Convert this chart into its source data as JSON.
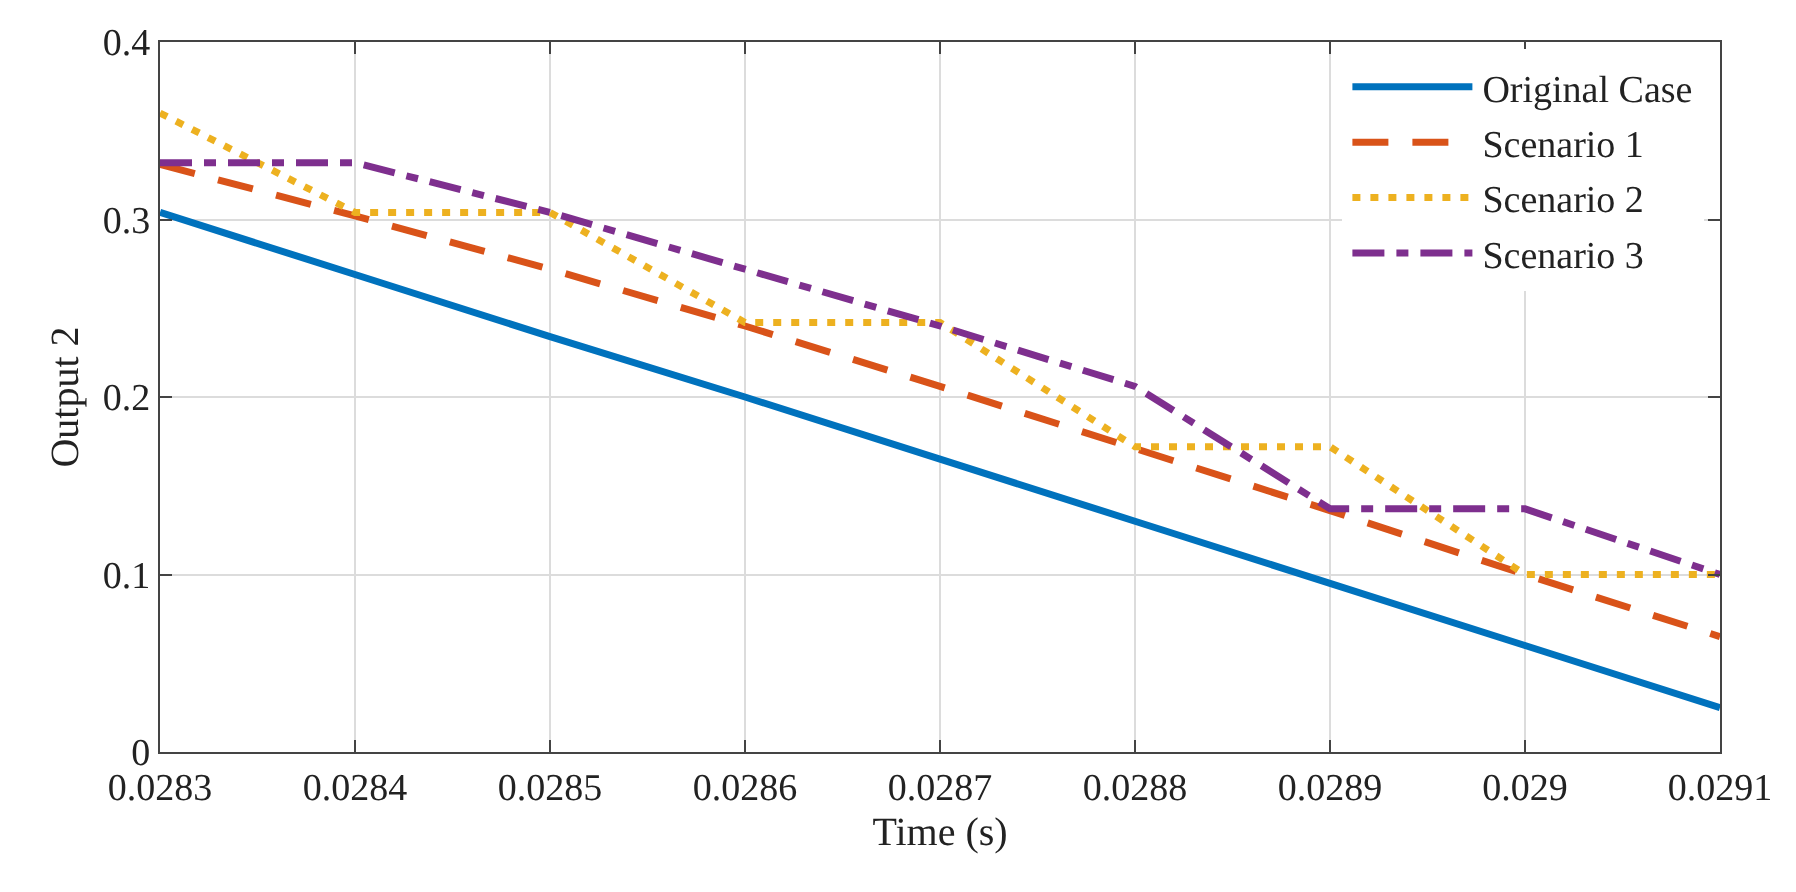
{
  "chart_data": {
    "type": "line",
    "xlabel": "Time (s)",
    "ylabel": "Output 2",
    "x": [
      0.0283,
      0.0284,
      0.0285,
      0.0286,
      0.0287,
      0.0288,
      0.0289,
      0.029,
      0.0291
    ],
    "series": [
      {
        "name": "Original Case",
        "color": "#0072bd",
        "line_style": "solid",
        "values": [
          0.304,
          0.269,
          0.234,
          0.2,
          0.165,
          0.13,
          0.095,
          0.06,
          0.025
        ]
      },
      {
        "name": "Scenario 1",
        "color": "#d95319",
        "line_style": "dashed",
        "values": [
          0.331,
          0.302,
          0.272,
          0.24,
          0.206,
          0.171,
          0.136,
          0.1,
          0.065
        ]
      },
      {
        "name": "Scenario 2",
        "color": "#edb120",
        "line_style": "dotted",
        "values": [
          0.36,
          0.304,
          0.304,
          0.242,
          0.242,
          0.172,
          0.172,
          0.1,
          0.1
        ]
      },
      {
        "name": "Scenario 3",
        "color": "#7e2f8e",
        "line_style": "dashdot",
        "values": [
          0.332,
          0.332,
          0.304,
          0.272,
          0.24,
          0.206,
          0.137,
          0.137,
          0.1
        ]
      }
    ],
    "xlim": [
      0.0283,
      0.0291
    ],
    "ylim": [
      0,
      0.4
    ],
    "xticks": [
      0.0283,
      0.0284,
      0.0285,
      0.0286,
      0.0287,
      0.0288,
      0.0289,
      0.029,
      0.0291
    ],
    "yticks": [
      0,
      0.1,
      0.2,
      0.3,
      0.4
    ],
    "grid": true,
    "legend": "top right",
    "marker": "none"
  }
}
